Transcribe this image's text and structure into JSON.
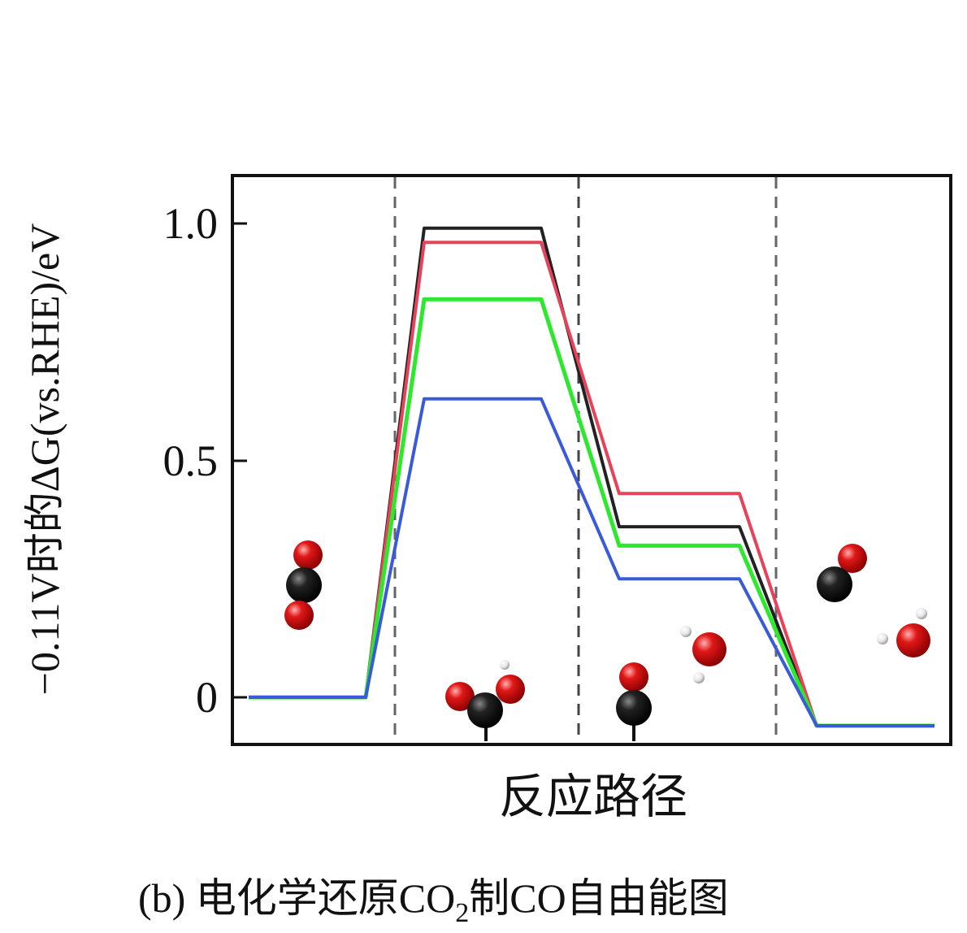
{
  "chart_data": {
    "type": "line",
    "subtype": "free-energy-step-diagram",
    "ylabel": "−0.11V时的ΔG(vs.RHE)/eV",
    "xlabel": "反应路径",
    "caption": {
      "prefix": "(b) 电化学还原CO",
      "subscript": "2",
      "suffix": "制CO自由能图"
    },
    "yticks": [
      {
        "value": 1.0,
        "label": "1.0"
      },
      {
        "value": 0.5,
        "label": "0.5"
      },
      {
        "value": 0,
        "label": "0"
      }
    ],
    "ylim": [
      -0.1,
      1.1
    ],
    "states": [
      "CO2",
      "COOH*",
      "CO*",
      "CO+H2O"
    ],
    "grid": false,
    "series": [
      {
        "color": "#222222",
        "values": [
          0,
          0.99,
          0.36,
          -0.06
        ]
      },
      {
        "color": "#e8425a",
        "values": [
          0,
          0.96,
          0.43,
          -0.06
        ]
      },
      {
        "color": "#2ee82e",
        "values": [
          0,
          0.84,
          0.32,
          -0.06
        ]
      },
      {
        "color": "#3a5bd9",
        "values": [
          0,
          0.63,
          0.25,
          -0.06
        ]
      }
    ],
    "molecule_colors": {
      "C": "#111111",
      "O": "#e01818",
      "H": "#eeeeee"
    }
  }
}
